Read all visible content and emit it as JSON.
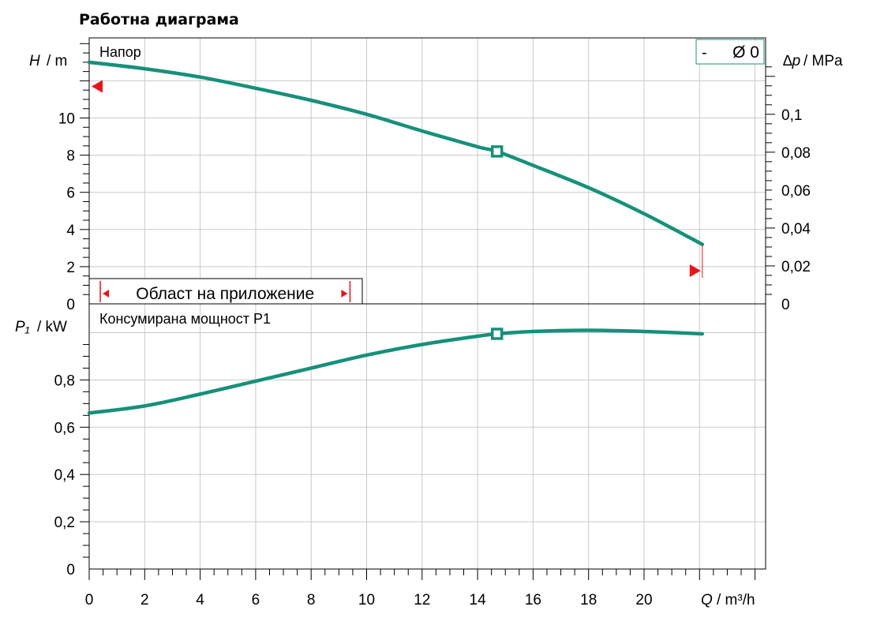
{
  "title": "Работна диаграма",
  "chart_data": [
    {
      "type": "line",
      "panel": "head",
      "label": "Напор",
      "ylabel_symbol": "H",
      "ylabel_unit": "/ m",
      "y2label_symbol": "∆p",
      "y2label_unit": "/ MPa",
      "xlim": [
        0,
        24.4
      ],
      "ylim": [
        0,
        13.2
      ],
      "yticks": [
        0,
        2,
        4,
        6,
        8,
        10
      ],
      "ytick_labels": [
        "0",
        "2",
        "4",
        "6",
        "8",
        "10"
      ],
      "y2ticks": [
        0,
        0.02,
        0.04,
        0.06,
        0.08,
        0.1
      ],
      "y2tick_labels": [
        "0",
        "0,02",
        "0,04",
        "0,06",
        "0,08",
        "0,1"
      ],
      "grid": true,
      "legend": {
        "dash": "-",
        "diameter": "Ø 0"
      },
      "series": [
        {
          "color": "#17907a",
          "x": [
            0,
            2,
            4,
            6,
            8,
            10,
            12,
            14,
            14.7,
            16,
            18,
            20,
            22.1
          ],
          "y": [
            13.0,
            12.65,
            12.2,
            11.6,
            10.95,
            10.2,
            9.3,
            8.45,
            8.2,
            7.45,
            6.25,
            4.85,
            3.2
          ]
        }
      ],
      "operating_point": {
        "x": 14.7,
        "y": 8.2
      },
      "max_head_marker": 11.7,
      "max_flow_marker": 22.1,
      "application_range": {
        "label": "Област на приложение",
        "from": 0.4,
        "to": 9.4
      }
    },
    {
      "type": "line",
      "panel": "power",
      "label": "Консумирана мощност P1",
      "ylabel_symbol": "P₁",
      "ylabel_unit": "/ kW",
      "xlabel_symbol": "Q",
      "xlabel_unit": "/ m³/h",
      "xlim": [
        0,
        24.4
      ],
      "ylim": [
        0,
        1.0
      ],
      "yticks": [
        0,
        0.2,
        0.4,
        0.6,
        0.8
      ],
      "ytick_labels": [
        "0",
        "0,2",
        "0,4",
        "0,6",
        "0,8"
      ],
      "xticks": [
        0,
        2,
        4,
        6,
        8,
        10,
        12,
        14,
        16,
        18,
        20
      ],
      "xtick_labels": [
        "0",
        "2",
        "4",
        "6",
        "8",
        "10",
        "12",
        "14",
        "16",
        "18",
        "20"
      ],
      "grid": true,
      "series": [
        {
          "color": "#17907a",
          "x": [
            0,
            2,
            4,
            6,
            8,
            10,
            12,
            14,
            14.7,
            16,
            18,
            20,
            22.1
          ],
          "y": [
            0.66,
            0.69,
            0.74,
            0.795,
            0.85,
            0.905,
            0.95,
            0.985,
            0.995,
            1.005,
            1.01,
            1.005,
            0.995
          ]
        }
      ],
      "operating_point": {
        "x": 14.7,
        "y": 0.995
      }
    }
  ]
}
